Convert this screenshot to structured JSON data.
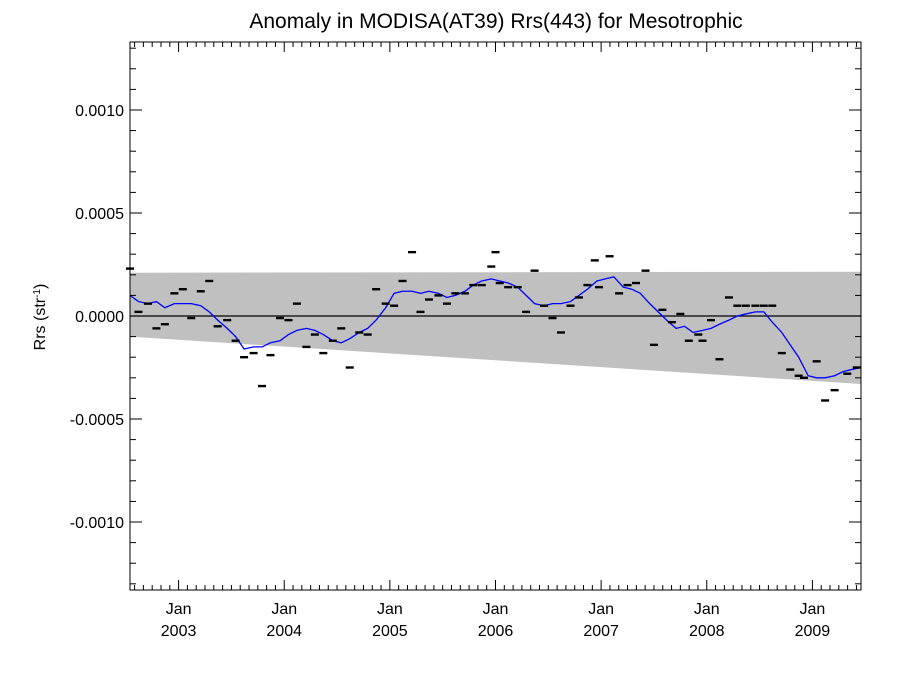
{
  "chart_data": {
    "type": "scatter",
    "title": "Anomaly in MODISA(AT39) Rrs(443) for Mesotrophic",
    "ylabel": "Rrs (str",
    "ylabel_sup": "-1",
    "ylabel_close": ")",
    "xlim": [
      2002.54,
      2009.46
    ],
    "ylim": [
      -0.00133,
      0.00133
    ],
    "y_ticks": [
      {
        "value": 0.001,
        "label": "0.0010"
      },
      {
        "value": 0.0005,
        "label": "0.0005"
      },
      {
        "value": 0.0,
        "label": "0.0000"
      },
      {
        "value": -0.0005,
        "label": "-0.0005"
      },
      {
        "value": -0.001,
        "label": "-0.0010"
      }
    ],
    "x_ticks": [
      {
        "value": 2003.0,
        "month": "Jan",
        "year": "2003"
      },
      {
        "value": 2004.0,
        "month": "Jan",
        "year": "2004"
      },
      {
        "value": 2005.0,
        "month": "Jan",
        "year": "2005"
      },
      {
        "value": 2006.0,
        "month": "Jan",
        "year": "2006"
      },
      {
        "value": 2007.0,
        "month": "Jan",
        "year": "2007"
      },
      {
        "value": 2008.0,
        "month": "Jan",
        "year": "2008"
      },
      {
        "value": 2009.0,
        "month": "Jan",
        "year": "2009"
      }
    ],
    "zero_line": 0.0,
    "band": {
      "upper": [
        [
          2002.54,
          0.00021
        ],
        [
          2009.46,
          0.000215
        ]
      ],
      "lower": [
        [
          2002.54,
          -0.0001
        ],
        [
          2009.46,
          -0.00033
        ]
      ],
      "color": "#c0c0c0"
    },
    "series": [
      {
        "type": "scatter",
        "color": "#000000",
        "marker": "dash",
        "points": [
          [
            2002.54,
            0.00023
          ],
          [
            2002.62,
            2e-05
          ],
          [
            2002.71,
            6e-05
          ],
          [
            2002.79,
            -6e-05
          ],
          [
            2002.87,
            -4e-05
          ],
          [
            2002.96,
            0.00011
          ],
          [
            2003.04,
            0.00013
          ],
          [
            2003.12,
            -1e-05
          ],
          [
            2003.21,
            0.00012
          ],
          [
            2003.29,
            0.00017
          ],
          [
            2003.37,
            -5e-05
          ],
          [
            2003.46,
            -2e-05
          ],
          [
            2003.54,
            -0.00012
          ],
          [
            2003.62,
            -0.0002
          ],
          [
            2003.71,
            -0.00018
          ],
          [
            2003.79,
            -0.00034
          ],
          [
            2003.87,
            -0.00019
          ],
          [
            2003.96,
            -1e-05
          ],
          [
            2004.04,
            -2e-05
          ],
          [
            2004.12,
            6e-05
          ],
          [
            2004.21,
            -0.00015
          ],
          [
            2004.29,
            -9e-05
          ],
          [
            2004.37,
            -0.00018
          ],
          [
            2004.46,
            -0.00012
          ],
          [
            2004.54,
            -6e-05
          ],
          [
            2004.62,
            -0.00025
          ],
          [
            2004.71,
            -8e-05
          ],
          [
            2004.79,
            -9e-05
          ],
          [
            2004.87,
            0.00013
          ],
          [
            2004.96,
            6e-05
          ],
          [
            2005.04,
            5e-05
          ],
          [
            2005.12,
            0.00017
          ],
          [
            2005.21,
            0.00031
          ],
          [
            2005.29,
            2e-05
          ],
          [
            2005.37,
            8e-05
          ],
          [
            2005.46,
            0.0001
          ],
          [
            2005.54,
            6e-05
          ],
          [
            2005.62,
            0.00011
          ],
          [
            2005.71,
            0.00011
          ],
          [
            2005.79,
            0.00015
          ],
          [
            2005.87,
            0.00015
          ],
          [
            2005.96,
            0.00024
          ],
          [
            2006.0,
            0.00031
          ],
          [
            2006.04,
            0.00016
          ],
          [
            2006.12,
            0.00014
          ],
          [
            2006.21,
            0.00014
          ],
          [
            2006.29,
            2e-05
          ],
          [
            2006.37,
            0.00022
          ],
          [
            2006.46,
            5e-05
          ],
          [
            2006.54,
            -1e-05
          ],
          [
            2006.62,
            -8e-05
          ],
          [
            2006.71,
            5e-05
          ],
          [
            2006.79,
            9e-05
          ],
          [
            2006.87,
            0.00015
          ],
          [
            2006.94,
            0.00027
          ],
          [
            2006.98,
            0.00014
          ],
          [
            2007.08,
            0.00029
          ],
          [
            2007.17,
            0.00011
          ],
          [
            2007.25,
            0.00015
          ],
          [
            2007.33,
            0.00016
          ],
          [
            2007.42,
            0.00022
          ],
          [
            2007.5,
            -0.00014
          ],
          [
            2007.58,
            3e-05
          ],
          [
            2007.67,
            -3e-05
          ],
          [
            2007.75,
            1e-05
          ],
          [
            2007.83,
            -0.00012
          ],
          [
            2007.92,
            -9e-05
          ],
          [
            2007.96,
            -0.00012
          ],
          [
            2008.04,
            -2e-05
          ],
          [
            2008.12,
            -0.00021
          ],
          [
            2008.21,
            9e-05
          ],
          [
            2008.29,
            5e-05
          ],
          [
            2008.37,
            5e-05
          ],
          [
            2008.46,
            5e-05
          ],
          [
            2008.54,
            5e-05
          ],
          [
            2008.62,
            5e-05
          ],
          [
            2008.71,
            -0.00018
          ],
          [
            2008.79,
            -0.00026
          ],
          [
            2008.87,
            -0.00029
          ],
          [
            2008.92,
            -0.0003
          ],
          [
            2009.04,
            -0.00022
          ],
          [
            2009.12,
            -0.00041
          ],
          [
            2009.21,
            -0.00036
          ],
          [
            2009.33,
            -0.00028
          ],
          [
            2009.42,
            -0.00025
          ]
        ]
      },
      {
        "type": "line",
        "color": "#0000ff",
        "points": [
          [
            2002.54,
            0.0001
          ],
          [
            2002.62,
            7e-05
          ],
          [
            2002.71,
            6e-05
          ],
          [
            2002.79,
            7e-05
          ],
          [
            2002.87,
            4e-05
          ],
          [
            2002.96,
            6e-05
          ],
          [
            2003.04,
            6e-05
          ],
          [
            2003.12,
            6e-05
          ],
          [
            2003.21,
            5e-05
          ],
          [
            2003.29,
            2e-05
          ],
          [
            2003.37,
            -2e-05
          ],
          [
            2003.46,
            -6e-05
          ],
          [
            2003.54,
            -0.0001
          ],
          [
            2003.62,
            -0.00016
          ],
          [
            2003.71,
            -0.00015
          ],
          [
            2003.79,
            -0.00015
          ],
          [
            2003.87,
            -0.00013
          ],
          [
            2003.96,
            -0.00012
          ],
          [
            2004.04,
            -9e-05
          ],
          [
            2004.12,
            -7e-05
          ],
          [
            2004.21,
            -6e-05
          ],
          [
            2004.29,
            -7e-05
          ],
          [
            2004.37,
            -9e-05
          ],
          [
            2004.46,
            -0.00012
          ],
          [
            2004.54,
            -0.00013
          ],
          [
            2004.62,
            -0.00011
          ],
          [
            2004.71,
            -8e-05
          ],
          [
            2004.79,
            -6e-05
          ],
          [
            2004.87,
            -2e-05
          ],
          [
            2004.96,
            4e-05
          ],
          [
            2005.04,
            0.00011
          ],
          [
            2005.12,
            0.00012
          ],
          [
            2005.21,
            0.00012
          ],
          [
            2005.29,
            0.00011
          ],
          [
            2005.37,
            0.00012
          ],
          [
            2005.46,
            0.00011
          ],
          [
            2005.54,
            9e-05
          ],
          [
            2005.62,
            0.0001
          ],
          [
            2005.71,
            0.00012
          ],
          [
            2005.79,
            0.00015
          ],
          [
            2005.87,
            0.00017
          ],
          [
            2005.96,
            0.00018
          ],
          [
            2006.04,
            0.00017
          ],
          [
            2006.12,
            0.00016
          ],
          [
            2006.21,
            0.00014
          ],
          [
            2006.29,
            0.0001
          ],
          [
            2006.37,
            6e-05
          ],
          [
            2006.46,
            5e-05
          ],
          [
            2006.54,
            6e-05
          ],
          [
            2006.62,
            6e-05
          ],
          [
            2006.71,
            7e-05
          ],
          [
            2006.79,
            0.0001
          ],
          [
            2006.87,
            0.00013
          ],
          [
            2006.96,
            0.00017
          ],
          [
            2007.04,
            0.00018
          ],
          [
            2007.12,
            0.00019
          ],
          [
            2007.21,
            0.00014
          ],
          [
            2007.29,
            0.00013
          ],
          [
            2007.37,
            0.00011
          ],
          [
            2007.46,
            6e-05
          ],
          [
            2007.54,
            2e-05
          ],
          [
            2007.62,
            -2e-05
          ],
          [
            2007.71,
            -6e-05
          ],
          [
            2007.79,
            -5e-05
          ],
          [
            2007.87,
            -8e-05
          ],
          [
            2007.96,
            -7e-05
          ],
          [
            2008.04,
            -6e-05
          ],
          [
            2008.12,
            -4e-05
          ],
          [
            2008.21,
            -2e-05
          ],
          [
            2008.29,
            0.0
          ],
          [
            2008.37,
            1e-05
          ],
          [
            2008.46,
            2e-05
          ],
          [
            2008.54,
            2e-05
          ],
          [
            2008.62,
            -3e-05
          ],
          [
            2008.71,
            -8e-05
          ],
          [
            2008.79,
            -0.00014
          ],
          [
            2008.87,
            -0.0002
          ],
          [
            2008.96,
            -0.00029
          ],
          [
            2009.04,
            -0.0003
          ],
          [
            2009.12,
            -0.0003
          ],
          [
            2009.21,
            -0.00029
          ],
          [
            2009.29,
            -0.00027
          ],
          [
            2009.37,
            -0.00026
          ],
          [
            2009.46,
            -0.00025
          ]
        ]
      }
    ]
  }
}
